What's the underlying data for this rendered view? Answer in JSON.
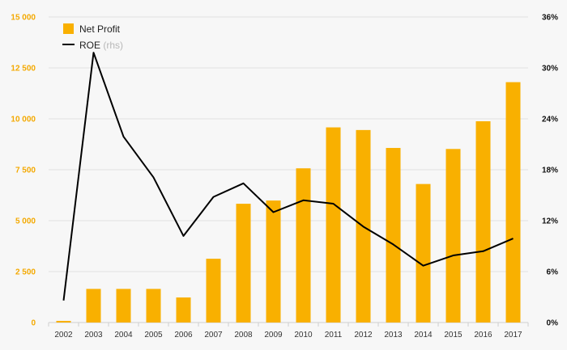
{
  "chart_data": {
    "type": "bar",
    "categories": [
      "2002",
      "2003",
      "2004",
      "2005",
      "2006",
      "2007",
      "2008",
      "2009",
      "2010",
      "2011",
      "2012",
      "2013",
      "2014",
      "2015",
      "2016",
      "2017"
    ],
    "series": [
      {
        "name": "Net Profit",
        "type": "bar",
        "axis": "left",
        "color": "#f9b000",
        "values": [
          80,
          1650,
          1650,
          1650,
          1230,
          3130,
          5830,
          5990,
          7570,
          9580,
          9450,
          8570,
          6800,
          8520,
          9880,
          11800
        ]
      },
      {
        "name": "ROE",
        "name_suffix": "(rhs)",
        "type": "line",
        "axis": "right",
        "color": "#000000",
        "values": [
          2.6,
          31.8,
          21.9,
          17.1,
          10.2,
          14.8,
          16.4,
          13.0,
          14.4,
          14.0,
          11.3,
          9.2,
          6.7,
          7.9,
          8.4,
          9.9
        ]
      }
    ],
    "y_left": {
      "ylim": [
        0,
        15000
      ],
      "ticks": [
        "0",
        "2 500",
        "5 000",
        "7 500",
        "10 000",
        "12 500",
        "15 000"
      ],
      "tick_values": [
        0,
        2500,
        5000,
        7500,
        10000,
        12500,
        15000
      ],
      "color": "#f4a900"
    },
    "y_right": {
      "ylim": [
        0,
        36
      ],
      "ticks": [
        "0%",
        "6%",
        "12%",
        "18%",
        "24%",
        "30%",
        "36%"
      ],
      "tick_values": [
        0,
        6,
        12,
        18,
        24,
        30,
        36
      ]
    },
    "legend_placement": "top-left",
    "grid": true
  }
}
